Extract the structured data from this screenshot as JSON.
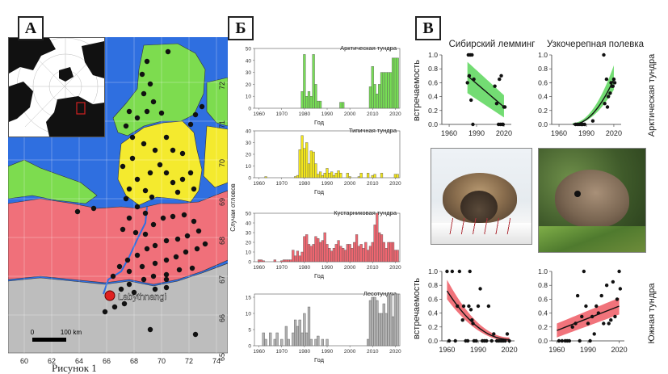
{
  "panels": {
    "a": "А",
    "b": "Б",
    "c": "В"
  },
  "caption_fragment": "Рисунок 1",
  "map": {
    "city": "Labythnangi",
    "scale_label": "100 km",
    "scale_zero": "0",
    "lon_ticks": [
      "60",
      "62",
      "64",
      "66",
      "68",
      "70",
      "72",
      "74"
    ],
    "lat_ticks": [
      "72",
      "71",
      "70",
      "69",
      "68",
      "67",
      "66",
      "65"
    ],
    "colors": {
      "sea": "#2f6fe0",
      "arctic": "#7ddc4f",
      "typical": "#f4ea2e",
      "shrub": "#f0707a",
      "forest": "#bdbdbd"
    }
  },
  "histograms": {
    "ylabel": "Случаи отловов",
    "xlabel": "Год",
    "items": [
      {
        "name": "Арктическая тундра",
        "color": "#77dd55",
        "yticks": [
          "0",
          "10",
          "20",
          "30",
          "40",
          "50"
        ],
        "xticks": [
          "1960",
          "1970",
          "1980",
          "1990",
          "2000",
          "2010",
          "2020"
        ]
      },
      {
        "name": "Типичная тундра",
        "color": "#f2e51c",
        "yticks": [
          "0",
          "10",
          "20",
          "30",
          "40"
        ],
        "xticks": [
          "1960",
          "1970",
          "1980",
          "1990",
          "2000",
          "2010",
          "2020"
        ]
      },
      {
        "name": "Кустарниковая тундра",
        "color": "#ef6670",
        "yticks": [
          "0",
          "10",
          "20",
          "30",
          "40",
          "50"
        ],
        "xticks": [
          "1960",
          "1970",
          "1980",
          "1990",
          "2000",
          "2010",
          "2020"
        ]
      },
      {
        "name": "Лесотундра",
        "color": "#b3b3b3",
        "yticks": [
          "0",
          "5",
          "10",
          "15"
        ],
        "xticks": [
          "1960",
          "1970",
          "1980",
          "1990",
          "2000",
          "2010",
          "2020"
        ]
      }
    ]
  },
  "scatter": {
    "col_titles": [
      "Сибирский лемминг",
      "Узкочерепная полевка"
    ],
    "row_labels": [
      "Арктическая тундра",
      "Южная тундра"
    ],
    "ylabel": "встречаемость",
    "yticks": [
      "0.0",
      "0.2",
      "0.4",
      "0.6",
      "0.8",
      "1.0"
    ],
    "xticks": [
      "1960",
      "1990",
      "2020"
    ]
  },
  "chart_data": [
    {
      "type": "bar",
      "title": "Арктическая тундра",
      "xlabel": "Год",
      "ylabel": "Случаи отловов",
      "x": [
        1979,
        1980,
        1981,
        1982,
        1983,
        1984,
        1985,
        1986,
        1987,
        1996,
        1997,
        2009,
        2010,
        2011,
        2012,
        2013,
        2014,
        2015,
        2016,
        2017,
        2018,
        2019,
        2020,
        2021
      ],
      "values": [
        14,
        45,
        10,
        14,
        10,
        45,
        20,
        6,
        6,
        5,
        5,
        18,
        35,
        20,
        12,
        20,
        30,
        30,
        30,
        30,
        30,
        42,
        42,
        42
      ],
      "xlim": [
        1958,
        2022
      ],
      "ylim": [
        0,
        50
      ]
    },
    {
      "type": "bar",
      "title": "Типичная тундра",
      "xlabel": "Год",
      "ylabel": "Случаи отловов",
      "x": [
        1963,
        1976,
        1977,
        1978,
        1979,
        1980,
        1981,
        1982,
        1983,
        1984,
        1985,
        1986,
        1987,
        1988,
        1989,
        1990,
        1991,
        1992,
        1993,
        1994,
        1995,
        1996,
        1999,
        2000,
        2004,
        2005,
        2008,
        2010,
        2011,
        2014,
        2020,
        2021
      ],
      "values": [
        1,
        1,
        2,
        24,
        36,
        25,
        30,
        12,
        23,
        22,
        12,
        3,
        5,
        2,
        4,
        8,
        4,
        5,
        2,
        4,
        6,
        4,
        4,
        1,
        1,
        4,
        4,
        2,
        3,
        4,
        3,
        3
      ],
      "xlim": [
        1958,
        2022
      ],
      "ylim": [
        0,
        40
      ]
    },
    {
      "type": "bar",
      "title": "Кустарниковая тундра",
      "xlabel": "Год",
      "ylabel": "Случаи отловов",
      "x": [
        1960,
        1961,
        1962,
        1967,
        1970,
        1971,
        1972,
        1973,
        1974,
        1975,
        1976,
        1977,
        1978,
        1979,
        1980,
        1981,
        1982,
        1983,
        1984,
        1985,
        1986,
        1987,
        1988,
        1989,
        1990,
        1991,
        1992,
        1993,
        1994,
        1995,
        1996,
        1997,
        1998,
        1999,
        2000,
        2001,
        2002,
        2003,
        2004,
        2005,
        2006,
        2007,
        2008,
        2009,
        2010,
        2011,
        2012,
        2013,
        2014,
        2015,
        2016,
        2017,
        2018,
        2019,
        2020,
        2021
      ],
      "values": [
        2,
        2,
        1,
        2,
        1,
        2,
        2,
        2,
        2,
        12,
        6,
        11,
        6,
        10,
        26,
        28,
        18,
        16,
        18,
        26,
        24,
        20,
        22,
        30,
        18,
        14,
        11,
        14,
        18,
        22,
        16,
        14,
        12,
        18,
        18,
        14,
        20,
        28,
        16,
        18,
        14,
        20,
        12,
        16,
        20,
        38,
        50,
        30,
        28,
        20,
        14,
        20,
        20,
        20,
        12,
        12
      ],
      "xlim": [
        1958,
        2022
      ],
      "ylim": [
        0,
        50
      ]
    },
    {
      "type": "bar",
      "title": "Лесотундра",
      "xlabel": "Год",
      "ylabel": "Случаи отловов",
      "x": [
        1962,
        1963,
        1965,
        1967,
        1968,
        1970,
        1972,
        1973,
        1975,
        1976,
        1977,
        1978,
        1979,
        1980,
        1981,
        1982,
        1983,
        1985,
        1986,
        1988,
        1990,
        2008,
        2009,
        2010,
        2011,
        2012,
        2013,
        2014,
        2015,
        2016,
        2017,
        2018,
        2019,
        2020,
        2021
      ],
      "values": [
        4,
        2,
        4,
        2,
        4,
        2,
        6,
        2,
        4,
        8,
        6,
        8,
        4,
        10,
        4,
        12,
        2,
        2,
        3,
        2,
        2,
        2,
        14,
        15,
        15,
        14,
        10,
        10,
        13,
        10,
        16,
        16,
        9,
        16,
        16
      ],
      "xlim": [
        1958,
        2022
      ],
      "ylim": [
        0,
        16
      ]
    },
    {
      "type": "scatter",
      "title": "Сибирский лемминг",
      "ylabel": "встречаемость",
      "x": [
        1980,
        1981,
        1982,
        1983,
        1984,
        1985,
        1986,
        1987,
        2010,
        2012,
        2014,
        2015,
        2016,
        2017,
        2018,
        2019,
        2020,
        2021
      ],
      "y": [
        0.6,
        1.0,
        0.7,
        1.0,
        0.35,
        1.0,
        0.0,
        0.65,
        0.55,
        0.3,
        0.0,
        0.65,
        0.0,
        0.7,
        0.0,
        0.0,
        0.25,
        0.25
      ],
      "fit": {
        "x": [
          1980,
          2020
        ],
        "y": [
          0.7,
          0.25
        ],
        "ci_low": [
          0.45,
          0.1
        ],
        "ci_high": [
          0.9,
          0.42
        ]
      },
      "xlim": [
        1952,
        2028
      ],
      "ylim": [
        0,
        1
      ]
    },
    {
      "type": "scatter",
      "title": "Узкочерепная полевка",
      "ylabel": "встречаемость",
      "x": [
        1978,
        1980,
        1982,
        1984,
        1985,
        1986,
        1988,
        1997,
        2009,
        2010,
        2012,
        2013,
        2014,
        2016,
        2017,
        2018,
        2019,
        2020,
        2021
      ],
      "y": [
        0.0,
        0.0,
        0.0,
        0.0,
        0.0,
        0.0,
        0.0,
        0.05,
        1.0,
        0.3,
        0.65,
        0.25,
        0.4,
        0.45,
        0.6,
        0.55,
        0.55,
        0.65,
        0.6
      ],
      "fit": {
        "x": [
          1975,
          2020
        ],
        "y": [
          0.0,
          0.65
        ],
        "ci_low": [
          0.0,
          0.5
        ],
        "ci_high": [
          0.02,
          0.85
        ]
      },
      "xlim": [
        1952,
        2028
      ],
      "ylim": [
        0,
        1
      ]
    },
    {
      "type": "scatter",
      "title": "Сибирский лемминг (Южная тундра)",
      "ylabel": "встречаемость",
      "x": [
        1960,
        1962,
        1965,
        1968,
        1970,
        1972,
        1975,
        1976,
        1978,
        1980,
        1981,
        1982,
        1983,
        1984,
        1985,
        1986,
        1988,
        1990,
        1992,
        1994,
        1996,
        1998,
        2000,
        2003,
        2005,
        2008,
        2010,
        2012,
        2014,
        2016,
        2018,
        2020
      ],
      "y": [
        1.0,
        0.0,
        1.0,
        0.0,
        0.5,
        1.0,
        0.3,
        0.5,
        0.0,
        0.0,
        0.5,
        1.0,
        0.45,
        0.3,
        0.25,
        0.0,
        0.0,
        0.5,
        0.75,
        0.0,
        0.0,
        0.0,
        0.5,
        0.0,
        0.1,
        0.0,
        0.0,
        0.0,
        0.0,
        0.0,
        0.1,
        0.0
      ],
      "fit": {
        "x": [
          1960,
          2020
        ],
        "y": [
          0.72,
          0.02
        ],
        "ci_low": [
          0.6,
          0.0
        ],
        "ci_high": [
          0.88,
          0.05
        ]
      },
      "xlim": [
        1955,
        2025
      ],
      "ylim": [
        0,
        1
      ]
    },
    {
      "type": "scatter",
      "title": "Узкочерепная полевка (Южная тундра)",
      "ylabel": "встречаемость",
      "x": [
        1962,
        1965,
        1968,
        1970,
        1972,
        1975,
        1978,
        1980,
        1982,
        1984,
        1986,
        1988,
        1990,
        1992,
        1994,
        1996,
        1998,
        2000,
        2003,
        2005,
        2008,
        2010,
        2012,
        2014,
        2016,
        2018,
        2020,
        2021
      ],
      "y": [
        0.0,
        0.0,
        0.0,
        0.0,
        0.0,
        0.2,
        0.25,
        0.65,
        0.0,
        0.35,
        1.0,
        0.5,
        0.25,
        0.0,
        0.35,
        0.1,
        0.5,
        0.4,
        0.65,
        0.25,
        0.8,
        0.25,
        0.3,
        0.85,
        0.35,
        0.6,
        1.0,
        0.75
      ],
      "fit": {
        "x": [
          1960,
          2020
        ],
        "y": [
          0.15,
          0.5
        ],
        "ci_low": [
          0.05,
          0.38
        ],
        "ci_high": [
          0.25,
          0.62
        ]
      },
      "xlim": [
        1955,
        2025
      ],
      "ylim": [
        0,
        1
      ]
    }
  ]
}
